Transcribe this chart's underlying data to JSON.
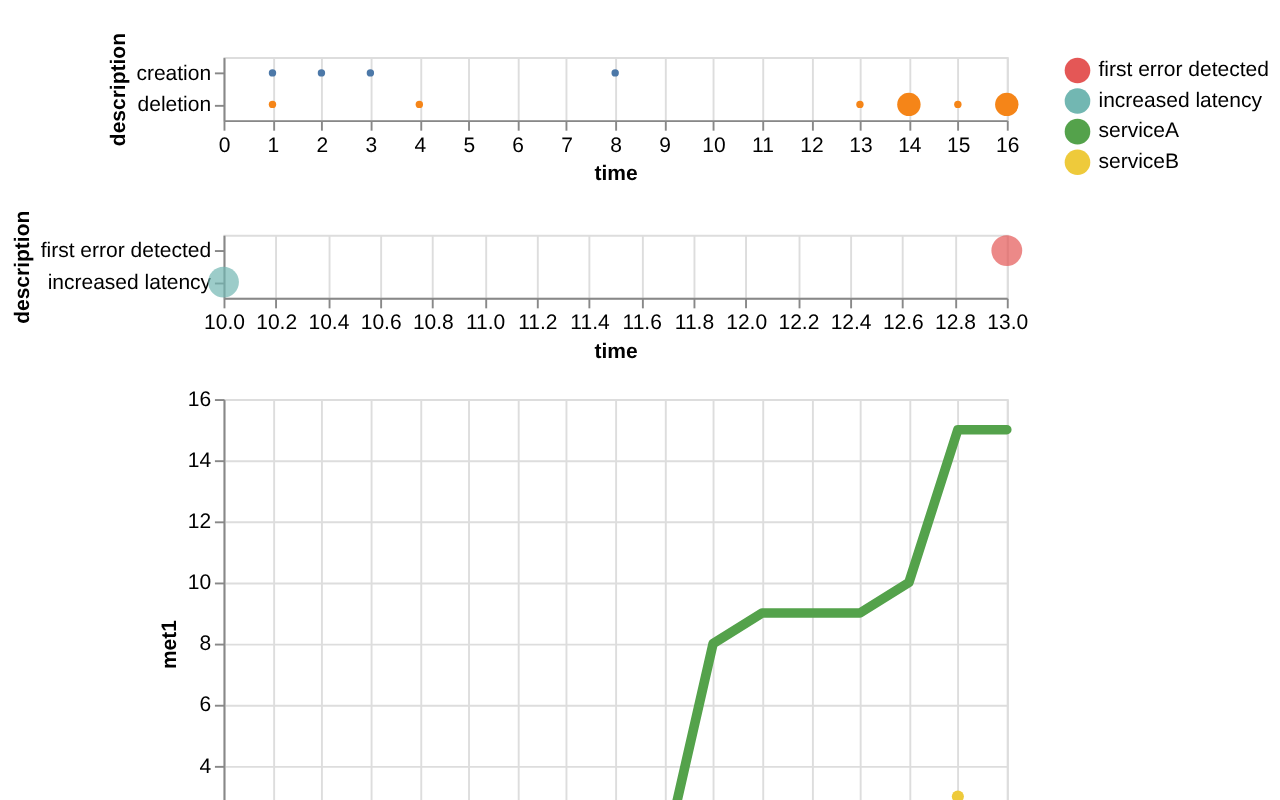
{
  "chart_data": [
    {
      "type": "bubble",
      "orientation": "horizontal",
      "categories": [
        "creation",
        "deletion"
      ],
      "xlabel": "time",
      "ylabel": "description",
      "xlim": [
        0,
        16
      ],
      "xticks": [
        0,
        1,
        2,
        3,
        4,
        5,
        6,
        7,
        8,
        9,
        10,
        11,
        12,
        13,
        14,
        15,
        16
      ],
      "grid": "x",
      "series": [
        {
          "color": "#4c78a8",
          "values": [
            1,
            null
          ],
          "sizes": [
            0.1,
            null
          ]
        },
        {
          "color": "#4c78a8",
          "values": [
            2,
            null
          ],
          "sizes": [
            0.1,
            null
          ]
        },
        {
          "color": "#4c78a8",
          "values": [
            3,
            null
          ],
          "sizes": [
            0.1,
            null
          ]
        },
        {
          "color": "#4c78a8",
          "values": [
            8,
            null
          ],
          "sizes": [
            0.1,
            null
          ]
        },
        {
          "color": "#f58518",
          "values": [
            null,
            1
          ],
          "sizes": [
            null,
            0.1
          ]
        },
        {
          "color": "#f58518",
          "values": [
            null,
            4
          ],
          "sizes": [
            null,
            0.1
          ]
        },
        {
          "color": "#f58518",
          "values": [
            null,
            13
          ],
          "sizes": [
            null,
            0.1
          ]
        },
        {
          "color": "#f58518",
          "values": [
            null,
            14
          ],
          "sizes": [
            null,
            1
          ]
        },
        {
          "color": "#f58518",
          "values": [
            null,
            15
          ],
          "sizes": [
            null,
            0.1
          ]
        },
        {
          "color": "#f58518",
          "values": [
            null,
            16
          ],
          "sizes": [
            null,
            1
          ]
        }
      ]
    },
    {
      "type": "scatter",
      "orientation": "horizontal",
      "legend": "right",
      "categories": [
        "first error detected",
        "increased latency"
      ],
      "xlabel": "time",
      "ylabel": "description",
      "xlim": [
        10,
        13
      ],
      "xticks": [
        {
          "value": 10,
          "label": "10.0"
        },
        {
          "value": 10.2,
          "label": "10.2"
        },
        {
          "value": 10.4,
          "label": "10.4"
        },
        {
          "value": 10.6,
          "label": "10.6"
        },
        {
          "value": 10.8,
          "label": "10.8"
        },
        {
          "value": 11,
          "label": "11.0"
        },
        {
          "value": 11.2,
          "label": "11.2"
        },
        {
          "value": 11.4,
          "label": "11.4"
        },
        {
          "value": 11.6,
          "label": "11.6"
        },
        {
          "value": 11.8,
          "label": "11.8"
        },
        {
          "value": 12,
          "label": "12.0"
        },
        {
          "value": 12.2,
          "label": "12.2"
        },
        {
          "value": 12.4,
          "label": "12.4"
        },
        {
          "value": 12.6,
          "label": "12.6"
        },
        {
          "value": 12.8,
          "label": "12.8"
        },
        {
          "value": 13,
          "label": "13.0"
        }
      ],
      "grid": "x",
      "series": [
        {
          "name": "first error detected",
          "color": "#e45756",
          "values": [
            13,
            null
          ]
        },
        {
          "name": "increased latency",
          "color": "#72b7b2",
          "values": [
            null,
            10
          ]
        }
      ]
    },
    {
      "type": "line",
      "ylabel": "met1",
      "xlim": [
        0,
        16
      ],
      "ylim": [
        0,
        16
      ],
      "xticks": [
        {
          "value": 0,
          "label": null
        },
        {
          "value": 1,
          "label": null
        },
        {
          "value": 2,
          "label": null
        },
        {
          "value": 3,
          "label": null
        },
        {
          "value": 4,
          "label": null
        },
        {
          "value": 5,
          "label": null
        },
        {
          "value": 6,
          "label": null
        },
        {
          "value": 7,
          "label": null
        },
        {
          "value": 8,
          "label": null
        },
        {
          "value": 9,
          "label": null
        },
        {
          "value": 10,
          "label": null
        },
        {
          "value": 11,
          "label": null
        },
        {
          "value": 12,
          "label": null
        },
        {
          "value": 13,
          "label": null
        },
        {
          "value": 14,
          "label": null
        },
        {
          "value": 15,
          "label": null
        },
        {
          "value": 16,
          "label": null
        }
      ],
      "yticks": [
        4,
        6,
        8,
        10,
        12,
        14,
        16
      ],
      "grid": true,
      "tick_labels": "y",
      "legend": "right",
      "series": [
        {
          "name": "serviceA",
          "color": "#54a24b",
          "x": [
            9,
            10,
            11,
            12,
            13,
            14,
            15,
            16
          ],
          "values": [
            1,
            8,
            9,
            9,
            9,
            10,
            15,
            15
          ]
        },
        {
          "name": "serviceB",
          "color": "#eeca3b",
          "type": "scatter",
          "marker": "circle",
          "x": [
            15
          ],
          "values": [
            3
          ]
        }
      ]
    }
  ]
}
